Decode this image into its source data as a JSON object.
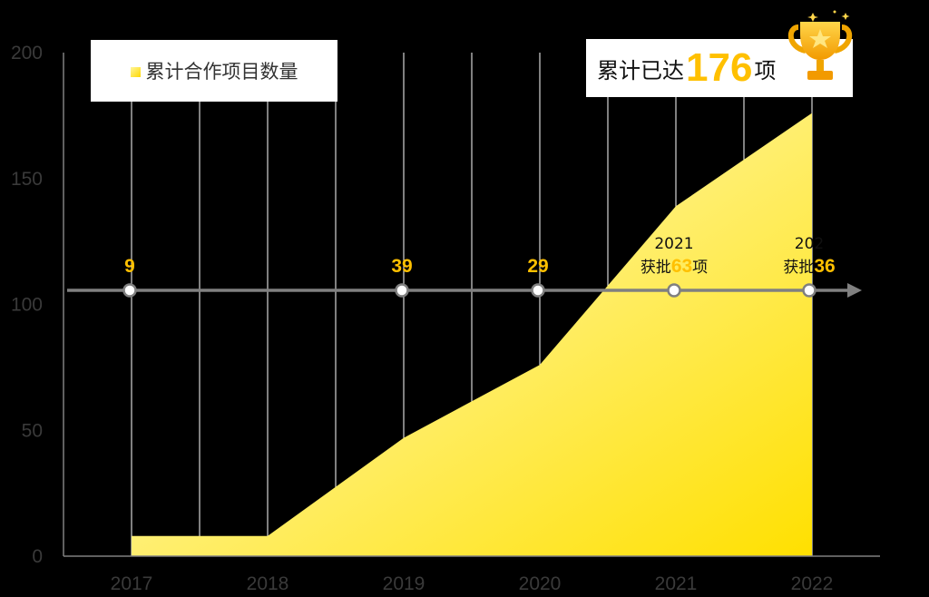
{
  "chart_data": {
    "type": "area",
    "x": [
      "2017",
      "2018",
      "2019",
      "2020",
      "2021",
      "2022"
    ],
    "series": [
      {
        "name": "累计合作项目数量",
        "color": "#ffe000",
        "values": [
          8,
          8,
          47,
          76,
          139,
          176
        ]
      }
    ],
    "ylim": [
      0,
      200
    ],
    "yticks": [
      "0",
      "50",
      "100",
      "150",
      "200"
    ],
    "grid": "vertical",
    "legend": "top-left"
  },
  "total": {
    "prefix": "累计已达",
    "value": "176",
    "suffix": "项"
  },
  "timeline": [
    {
      "year": "",
      "prefix": "",
      "value": "9",
      "suffix": ""
    },
    {
      "year": "",
      "prefix": "",
      "value": "39",
      "suffix": ""
    },
    {
      "year": "",
      "prefix": "",
      "value": "29",
      "suffix": ""
    },
    {
      "year": "2021",
      "prefix": "获批",
      "value": "63",
      "suffix": "项"
    },
    {
      "year": "202",
      "prefix": "获批",
      "value": "36",
      "suffix": ""
    }
  ],
  "colors": {
    "accent": "#ffc000",
    "area_light": "#fff6a8",
    "area_dark": "#ffe000",
    "axis": "#808080"
  },
  "icons": {
    "badge": "trophy-icon"
  }
}
